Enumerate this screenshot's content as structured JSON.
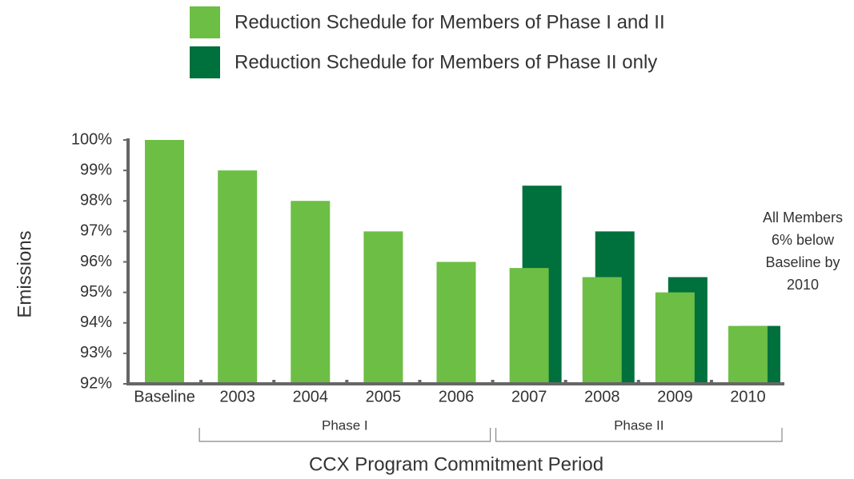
{
  "chart_data": {
    "type": "bar",
    "categories": [
      "Baseline",
      "2003",
      "2004",
      "2005",
      "2006",
      "2007",
      "2008",
      "2009",
      "2010"
    ],
    "series": [
      {
        "name": "Reduction Schedule for Members of Phase I and II",
        "color": "#6dbe45",
        "values": [
          100,
          99,
          98,
          97,
          96,
          95.8,
          95.5,
          95,
          93.9
        ]
      },
      {
        "name": "Reduction Schedule for Members of Phase II only",
        "color": "#00703c",
        "values": [
          null,
          null,
          null,
          null,
          null,
          98.5,
          97.0,
          95.5,
          93.9
        ]
      }
    ],
    "ylim": [
      92,
      100
    ],
    "yticks": [
      {
        "value": 92,
        "label": "92%"
      },
      {
        "value": 93,
        "label": "93%"
      },
      {
        "value": 94,
        "label": "94%"
      },
      {
        "value": 95,
        "label": "95%"
      },
      {
        "value": 96,
        "label": "96%"
      },
      {
        "value": 97,
        "label": "97%"
      },
      {
        "value": 98,
        "label": "98%"
      },
      {
        "value": 99,
        "label": "99%"
      },
      {
        "value": 100,
        "label": "100%"
      }
    ],
    "y_label": "Emissions",
    "x_label": "CCX Program Commitment Period",
    "groups": [
      {
        "label": "Phase I",
        "start": "2003",
        "end": "2006"
      },
      {
        "label": "Phase II",
        "start": "2007",
        "end": "2010"
      }
    ],
    "annotation": [
      "All Members",
      "6% below",
      "Baseline by",
      "2010"
    ]
  }
}
